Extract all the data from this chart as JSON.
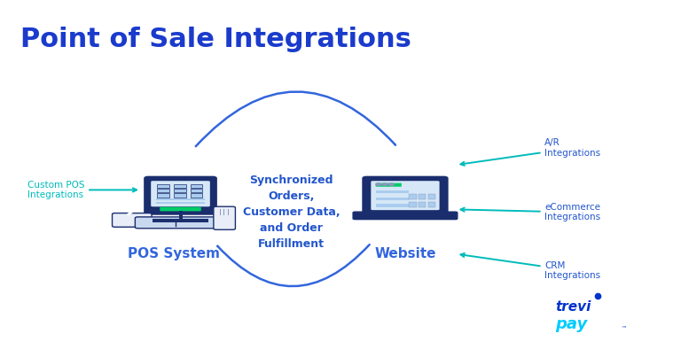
{
  "title": "Point of Sale Integrations",
  "title_color": "#1a3bcc",
  "title_fontsize": 22,
  "title_bg_color": "#e8f0fa",
  "body_bg_color": "#ffffff",
  "pos_label": "POS System",
  "website_label": "Website",
  "center_text": "Synchronized\nOrders,\nCustomer Data,\nand Order\nFulfillment",
  "center_text_color": "#2255cc",
  "left_arrow_label": "Custom POS\nIntegrations",
  "right_labels": [
    "A/R\nIntegrations",
    "eCommerce\nIntegrations",
    "CRM\nIntegrations"
  ],
  "arrow_color_blue": "#3366dd",
  "arrow_color_cyan": "#00bbbb",
  "label_color_left": "#00bbbb",
  "label_color_right": "#2255cc",
  "trevipay_trevi_color": "#0033cc",
  "trevipay_pay_color": "#00ccff",
  "frame_color": "#1a2e6e",
  "screen_color": "#d6e8f7",
  "tile_color": "#aaccee",
  "accent_green": "#00cc66"
}
